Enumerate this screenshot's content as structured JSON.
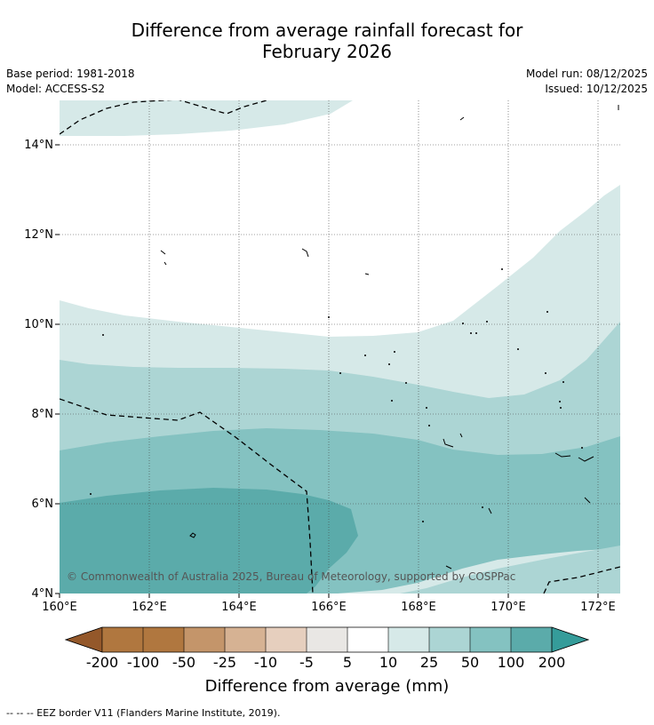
{
  "header": {
    "title_line1": "Difference from average rainfall forecast for",
    "title_line2": "February 2026",
    "base_period": "Base period: 1981-2018",
    "model": "Model: ACCESS-S2",
    "model_run": "Model run: 08/12/2025",
    "issued": "Issued: 10/12/2025"
  },
  "map": {
    "lon_range": [
      160,
      172.5
    ],
    "lat_range": [
      4,
      15
    ],
    "lon_ticks": [
      "160°E",
      "162°E",
      "164°E",
      "166°E",
      "168°E",
      "170°E",
      "172°E"
    ],
    "lat_ticks": [
      "4°N",
      "6°N",
      "8°N",
      "10°N",
      "12°N",
      "14°N"
    ],
    "copyright": "© Commonwealth of Australia 2025, Bureau of Meteorology, supported by COSPPac",
    "border_style": "dashed"
  },
  "colorbar": {
    "label": "Difference from average (mm)",
    "tick_labels": [
      "-200",
      "-100",
      "-50",
      "-25",
      "-10",
      "-5",
      "5",
      "10",
      "25",
      "50",
      "100",
      "200"
    ],
    "colors": {
      "below_-200": "#94582a",
      "-200_-100": "#b0773f",
      "-100_-50": "#c4956a",
      "-50_-25": "#d6b293",
      "-25_-10": "#e6cfbe",
      "-10_-5": "#e9e7e4",
      "-5_5": "#ffffff",
      "5_10": "#d6e9e8",
      "10_25": "#acd5d4",
      "25_50": "#84c2c1",
      "50_100": "#5babaa",
      "100_200": "#359c9a",
      "above_200": "#2b7b79"
    }
  },
  "footer": {
    "legend_line": "--  --  -- EEZ border V11 (Flanders Marine Institute, 2019)."
  }
}
